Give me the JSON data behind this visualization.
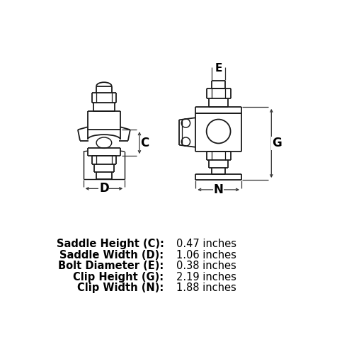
{
  "specs": [
    {
      "label": "Saddle Height (C):",
      "value": "0.47 inches"
    },
    {
      "label": "Saddle Width (D):",
      "value": "1.06 inches"
    },
    {
      "label": "Bolt Diameter (E):",
      "value": "0.38 inches"
    },
    {
      "label": "Clip Height (G):",
      "value": "2.19 inches"
    },
    {
      "label": "Clip Width (N):",
      "value": "1.88 inches"
    }
  ],
  "bg_color": "#ffffff",
  "line_color": "#1a1a1a",
  "text_color": "#000000",
  "dim_color": "#333333",
  "lw_main": 1.3,
  "lw_dim": 0.9,
  "spec_fontsize": 10.5
}
